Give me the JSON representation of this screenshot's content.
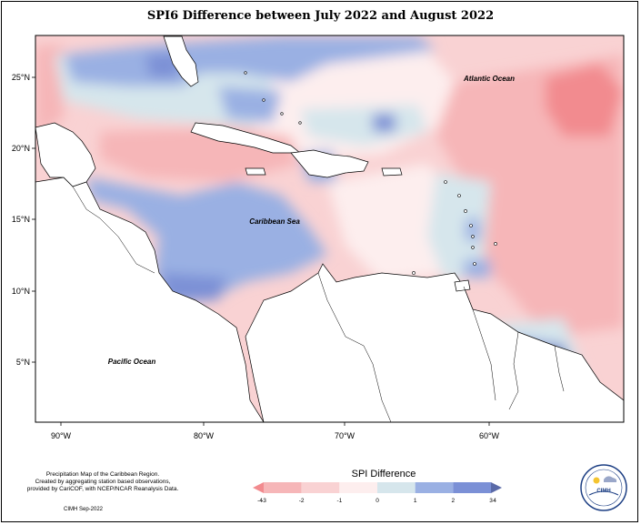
{
  "title": "SPI6 Difference between July 2022 and August 2022",
  "map": {
    "lon_ticks": [
      "90°W",
      "80°W",
      "70°W",
      "60°W"
    ],
    "lat_ticks": [
      "25°N",
      "20°N",
      "15°N",
      "10°N",
      "5°N"
    ],
    "labels": {
      "atlantic": "Atlantic Ocean",
      "caribbean": "Caribbean Sea",
      "pacific": "Pacific Ocean"
    }
  },
  "credits": {
    "line1": "Precipitation Map of the Caribbean Region.",
    "line2": "Created by aggregating station based observations,",
    "line3": "provided by CariCOF, with NCEP/NCAR Reanalysis Data.",
    "date": "CIMH Sep-2022"
  },
  "legend": {
    "title": "SPI Difference",
    "ticks": [
      "-4",
      "-3",
      "-2",
      "-1",
      "0",
      "1",
      "2",
      "3",
      "4"
    ],
    "colors": [
      "#f28b8f",
      "#f6b6b8",
      "#f9d2d3",
      "#fdeeee",
      "#d6e6ec",
      "#9ab0e3",
      "#7b90d6",
      "#5a6aa8"
    ]
  },
  "logo": {
    "text": "CIMH"
  },
  "colors": {
    "deep_red": "#f28b8f",
    "red": "#f6b6b8",
    "light_red": "#f9d2d3",
    "pale_red": "#fdeeee",
    "neutral": "#d6e6ec",
    "blue": "#9ab0e3",
    "mid_blue": "#7b90d6",
    "dark_blue": "#5a6aa8"
  }
}
